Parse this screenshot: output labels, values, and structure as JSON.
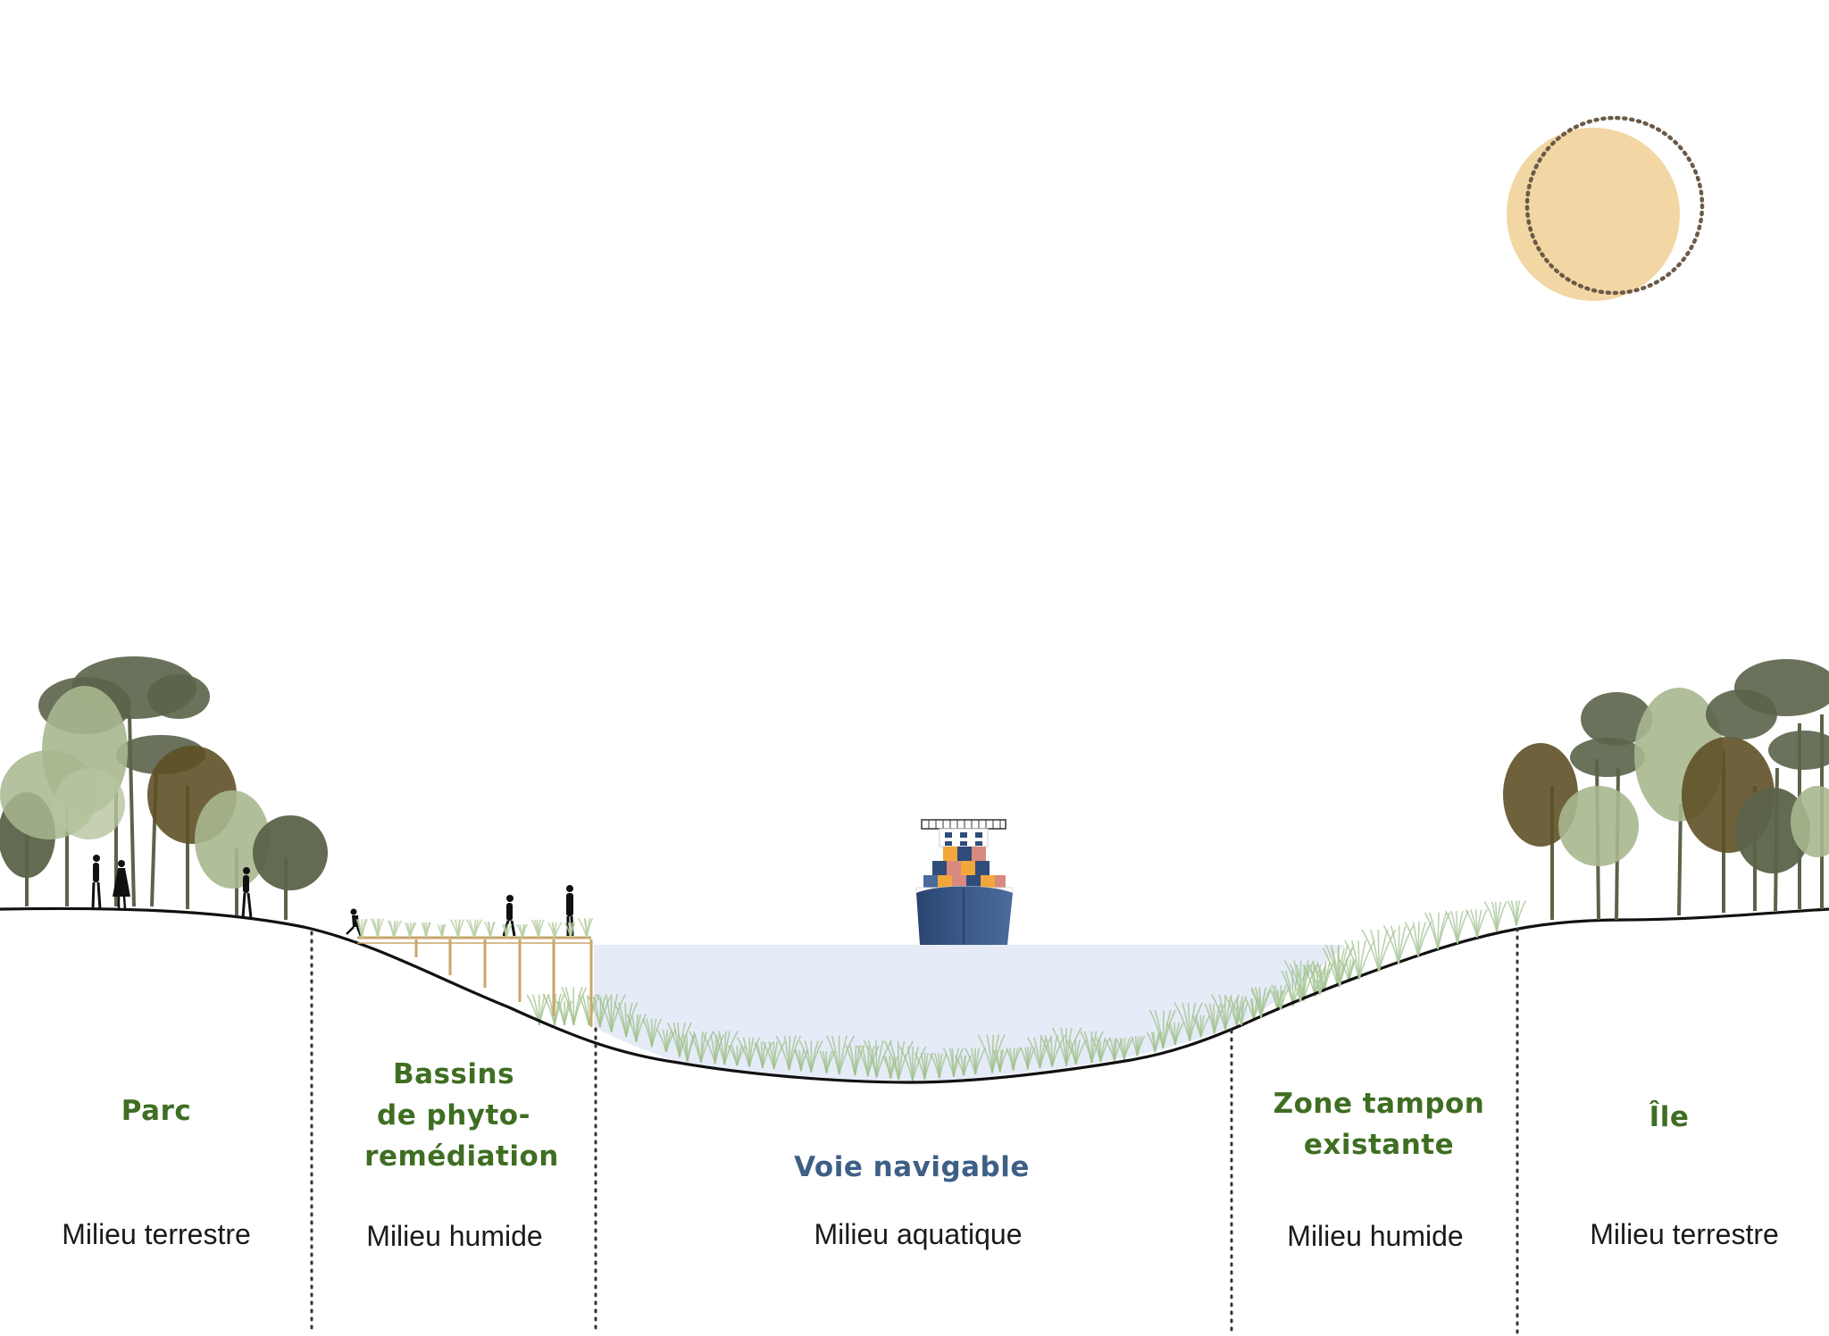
{
  "colors": {
    "green_title": "#3f6e22",
    "blue_title": "#3e5f86",
    "water": "#e6ebf8",
    "sun": "#f2d6a4",
    "ground_line": "#111111",
    "tree_dark": "#5b6349",
    "tree_light": "#a7b78f",
    "tree_olive": "#5e5026",
    "ship_hull": "#2f4c7a",
    "reed": "#9fc08a"
  },
  "zones": [
    {
      "id": "parc",
      "title_lines": [
        "Parc"
      ],
      "subtitle": "Milieu terrestre",
      "color": "green"
    },
    {
      "id": "bassins",
      "title_lines": [
        "Bassins",
        "de phyto-",
        "remédiation"
      ],
      "subtitle": "Milieu humide",
      "color": "green"
    },
    {
      "id": "voie",
      "title_lines": [
        "Voie navigable"
      ],
      "subtitle": "Milieu aquatique",
      "color": "blue"
    },
    {
      "id": "zone-tampon",
      "title_lines": [
        "Zone tampon",
        "existante"
      ],
      "subtitle": "Milieu humide",
      "color": "green"
    },
    {
      "id": "ile",
      "title_lines": [
        "Île"
      ],
      "subtitle": "Milieu terrestre",
      "color": "green"
    }
  ],
  "icons": [
    "sun-icon",
    "moon-orbit-icon",
    "tree-icon",
    "person-icon",
    "container-ship-icon",
    "reed-icon",
    "boardwalk-icon"
  ]
}
